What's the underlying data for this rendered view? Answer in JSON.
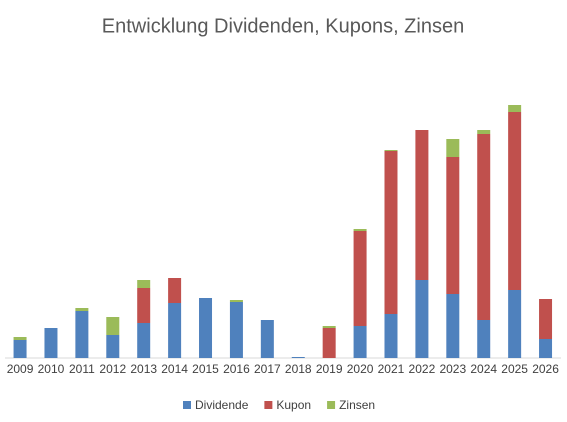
{
  "chart_data": {
    "type": "stacked-bar",
    "title": "Entwicklung Dividenden, Kupons, Zinsen",
    "categories": [
      "2009",
      "2010",
      "2011",
      "2012",
      "2013",
      "2014",
      "2015",
      "2016",
      "2017",
      "2018",
      "2019",
      "2020",
      "2021",
      "2022",
      "2023",
      "2024",
      "2025",
      "2026"
    ],
    "series": [
      {
        "name": "Dividende",
        "color": "#4f81bd",
        "values": [
          18,
          30,
          47,
          23,
          35,
          55,
          60,
          56,
          38,
          1,
          0,
          32,
          44,
          78,
          64,
          38,
          68,
          19
        ]
      },
      {
        "name": "Kupon",
        "color": "#c0504d",
        "values": [
          0,
          0,
          0,
          0,
          35,
          25,
          0,
          0,
          0,
          0,
          30,
          95,
          163,
          150,
          137,
          186,
          178,
          40
        ]
      },
      {
        "name": "Zinsen",
        "color": "#9bbb59",
        "values": [
          3,
          0,
          3,
          18,
          8,
          0,
          0,
          2,
          0,
          0,
          2,
          2,
          1,
          0,
          18,
          4,
          7,
          0
        ]
      }
    ],
    "ylim": [
      0,
      260
    ],
    "legend": "bottom"
  }
}
